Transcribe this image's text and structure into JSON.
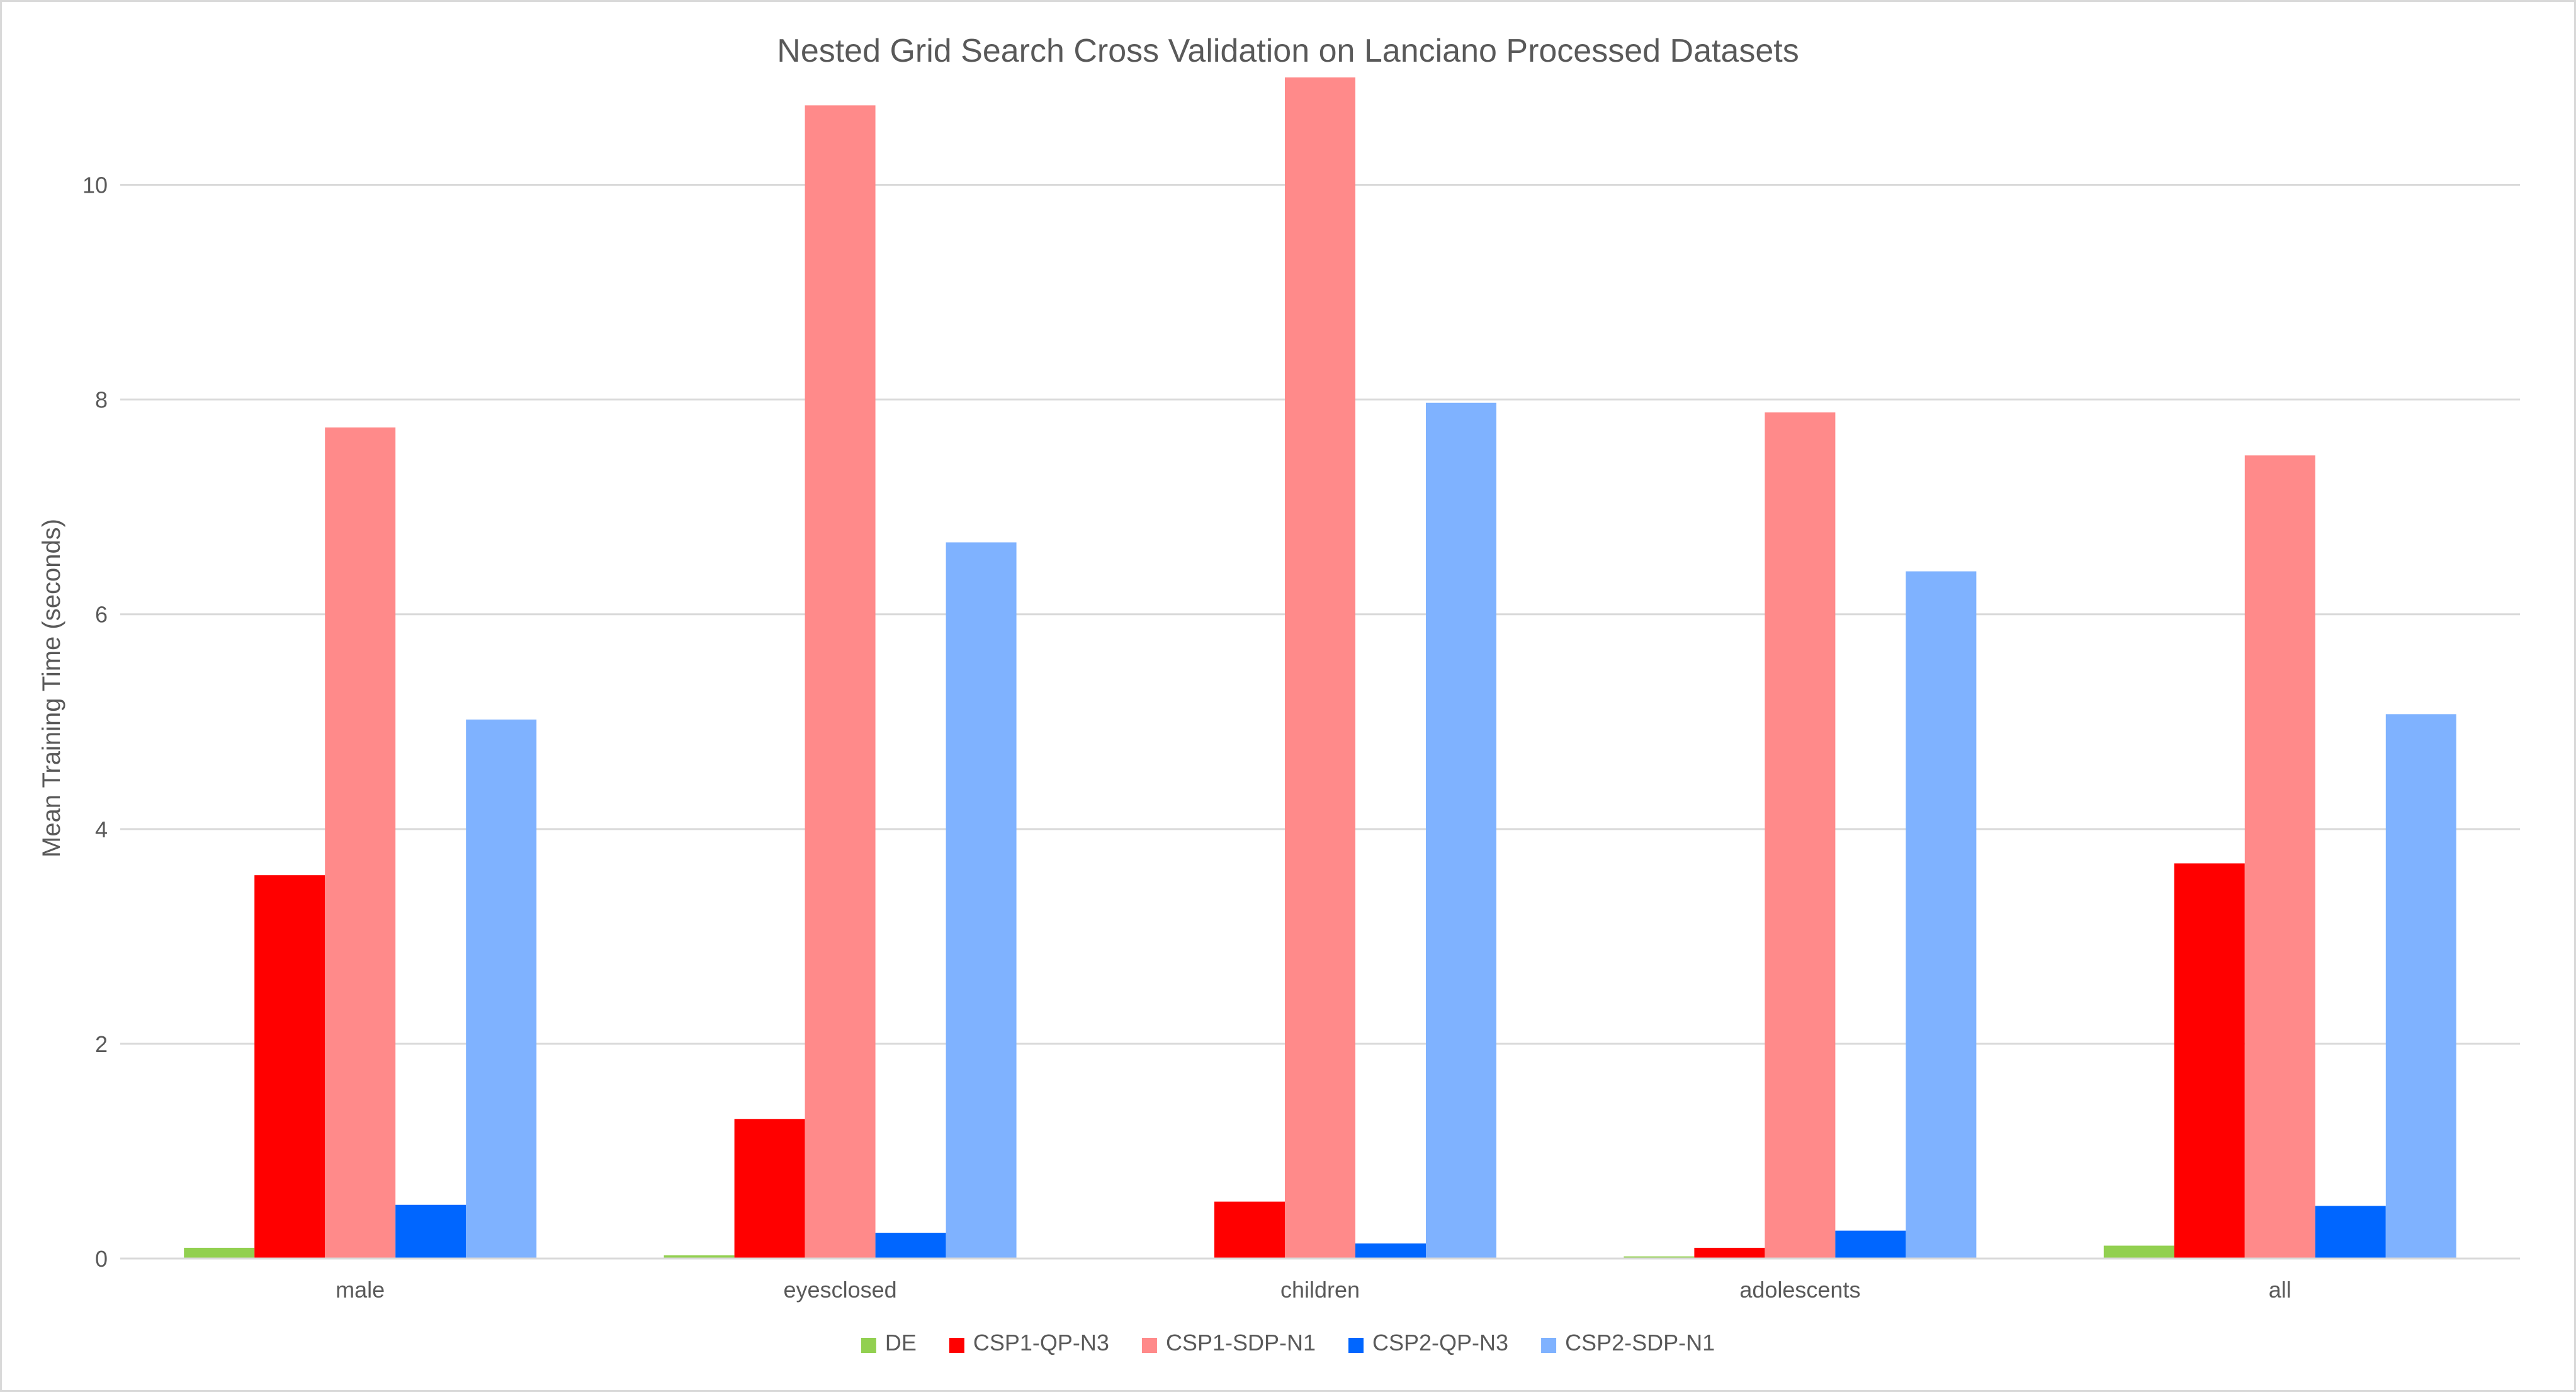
{
  "chart_data": {
    "type": "bar",
    "title": "Nested Grid Search Cross Validation on Lanciano Processed Datasets",
    "xlabel": "",
    "ylabel": "Mean Training Time (seconds)",
    "ylim": [
      0,
      11
    ],
    "yticks": [
      0,
      2,
      4,
      6,
      8,
      10
    ],
    "grid": true,
    "legend_position": "bottom",
    "categories": [
      "male",
      "eyesclosed",
      "children",
      "adolescents",
      "all"
    ],
    "series": [
      {
        "name": "DE",
        "color": "#92d050",
        "values": [
          0.1,
          0.03,
          0.0,
          0.02,
          0.12
        ]
      },
      {
        "name": "CSP1-QP-N3",
        "color": "#ff0000",
        "values": [
          3.57,
          1.3,
          0.53,
          0.1,
          3.68
        ]
      },
      {
        "name": "CSP1-SDP-N1",
        "color": "#ff8a8a",
        "values": [
          7.74,
          10.74,
          11.0,
          7.88,
          7.48
        ]
      },
      {
        "name": "CSP2-QP-N3",
        "color": "#0066ff",
        "values": [
          0.5,
          0.24,
          0.14,
          0.26,
          0.49
        ]
      },
      {
        "name": "CSP2-SDP-N1",
        "color": "#7fb2ff",
        "values": [
          5.02,
          6.67,
          7.97,
          6.4,
          5.07
        ]
      }
    ]
  }
}
